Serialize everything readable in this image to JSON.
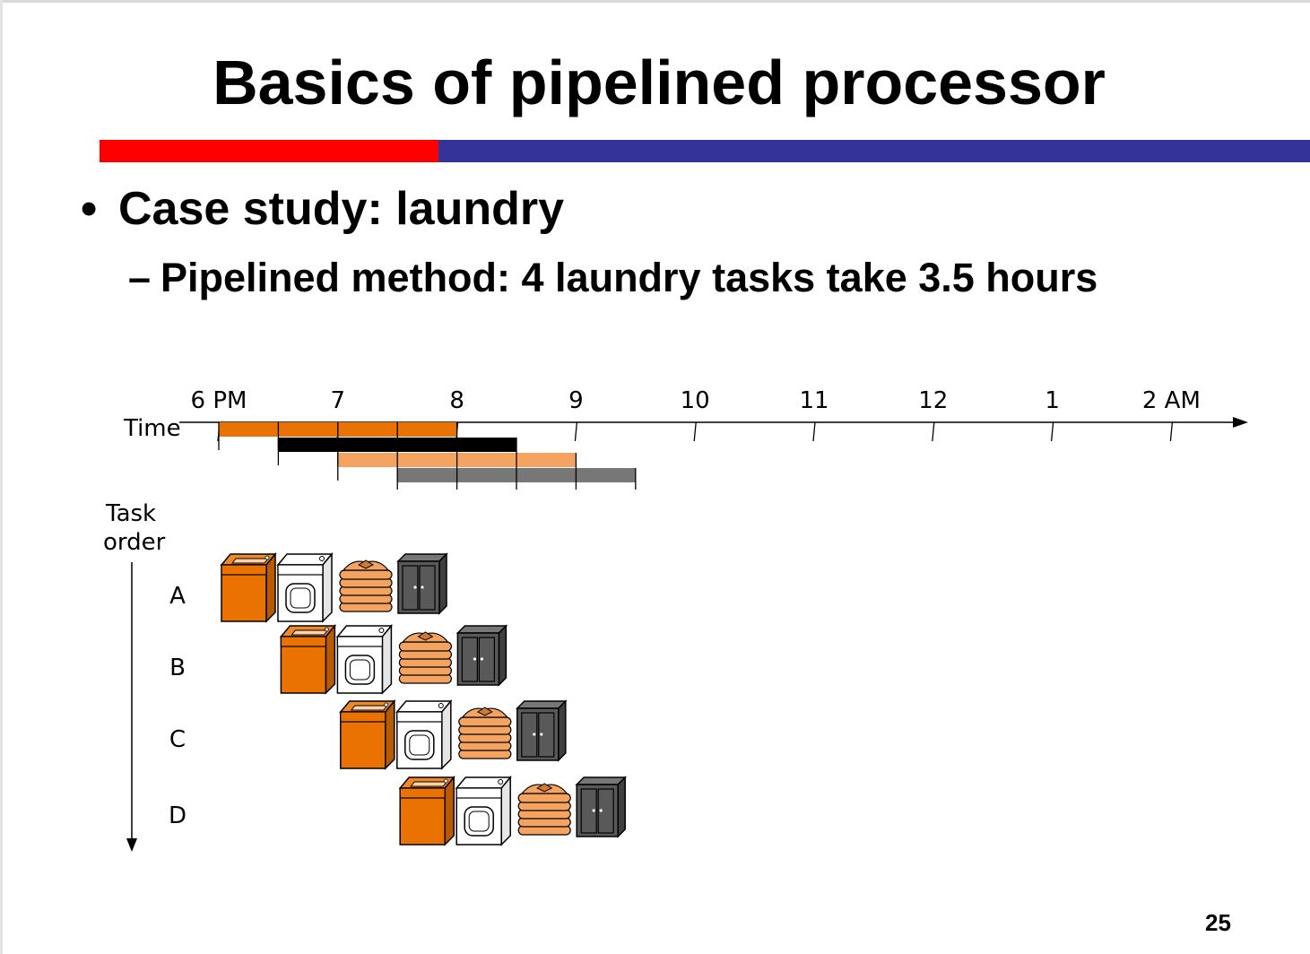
{
  "slide": {
    "title": "Basics of pipelined processor",
    "bullet": "Case study: laundry",
    "sub_bullet": "Pipelined method: 4 laundry tasks take 3.5 hours",
    "page_number": "25",
    "colors": {
      "accent_red": "#ff0000",
      "accent_blue": "#333399"
    }
  },
  "diagram": {
    "time_label": "Time",
    "time_ticks": [
      "6 PM",
      "7",
      "8",
      "9",
      "10",
      "11",
      "12",
      "1",
      "2 AM"
    ],
    "task_axis_label": [
      "Task",
      "order"
    ],
    "tasks": [
      {
        "label": "A",
        "start_hour": 0
      },
      {
        "label": "B",
        "start_hour": 0.5
      },
      {
        "label": "C",
        "start_hour": 1.0
      },
      {
        "label": "D",
        "start_hour": 1.5
      }
    ],
    "stage_duration_hours": 0.5,
    "stages": [
      {
        "name": "washer-icon",
        "color": "#e97200"
      },
      {
        "name": "dryer-icon",
        "color": "#ffffff"
      },
      {
        "name": "folded-clothes-icon",
        "color": "#f4a460"
      },
      {
        "name": "closet-icon",
        "color": "#595959"
      }
    ],
    "timeline_bar_colors": [
      "#e97200",
      "#000000",
      "#f4a460",
      "#777777"
    ]
  }
}
